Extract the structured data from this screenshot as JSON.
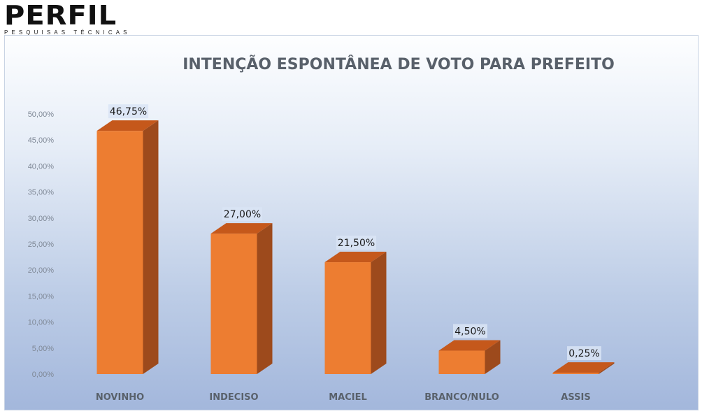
{
  "logo": {
    "main": "PERFIL",
    "sub": "PESQUISAS TÉCNICAS"
  },
  "colors": {
    "bar_front": "#ed7d31",
    "bar_top": "#c5581b",
    "bar_side": "#9d4a1c",
    "axis_text": "#7f8896",
    "title": "#58606a",
    "label_box": "#d9e4f5"
  },
  "chart_data": {
    "type": "bar",
    "title": "INTENÇÃO ESPONTÂNEA DE VOTO PARA PREFEITO",
    "categories": [
      "NOVINHO",
      "INDECISO",
      "MACIEL",
      "BRANCO/NULO",
      "ASSIS"
    ],
    "values": [
      46.75,
      27.0,
      21.5,
      4.5,
      0.25
    ],
    "data_labels": [
      "46,75%",
      "27,00%",
      "21,50%",
      "4,50%",
      "0,25%"
    ],
    "y_ticks": [
      0,
      5,
      10,
      15,
      20,
      25,
      30,
      35,
      40,
      45,
      50
    ],
    "y_tick_labels": [
      "0,00%",
      "5,00%",
      "10,00%",
      "15,00%",
      "20,00%",
      "25,00%",
      "30,00%",
      "35,00%",
      "40,00%",
      "45,00%",
      "50,00%"
    ],
    "ylim": [
      0,
      50
    ],
    "grid": false,
    "legend": "none",
    "style": "3d-column"
  }
}
